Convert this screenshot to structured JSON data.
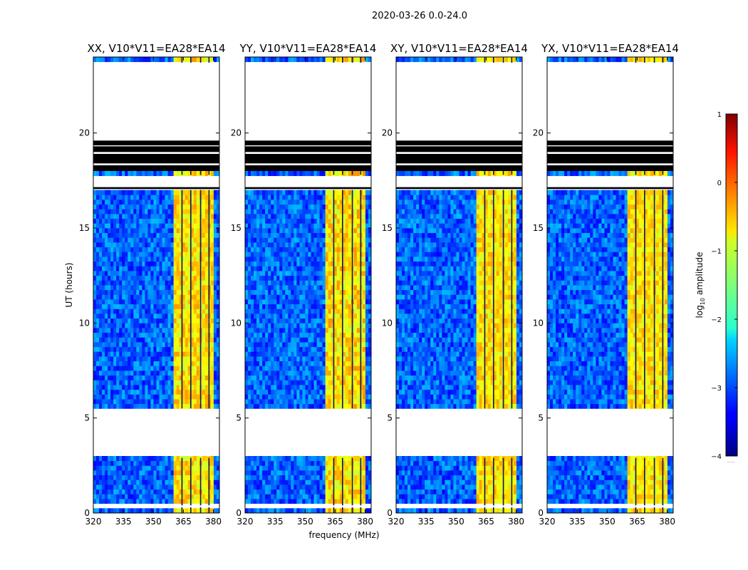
{
  "figure": {
    "suptitle": "2020-03-26 0.0-24.0",
    "ylabel": "UT (hours)",
    "xlabel": "frequency (MHz)",
    "colorbar_label": "log",
    "colorbar_label_sub": "10",
    "colorbar_label_suffix": " amplitude",
    "colorbar_extra": "......"
  },
  "chart_data": {
    "type": "heatmap",
    "panels": [
      {
        "title": "XX, V10*V11=EA28*EA14",
        "pol": "XX",
        "strength": 1.0
      },
      {
        "title": "YY, V10*V11=EA28*EA14",
        "pol": "YY",
        "strength": 1.12
      },
      {
        "title": "XY, V10*V11=EA28*EA14",
        "pol": "XY",
        "strength": 0.92
      },
      {
        "title": "YX, V10*V11=EA28*EA14",
        "pol": "YX",
        "strength": 0.88
      }
    ],
    "xlim": [
      320,
      383
    ],
    "ylim": [
      0,
      24
    ],
    "xticks": [
      320,
      335,
      350,
      365,
      380
    ],
    "xtick_labels": [
      "320",
      "335",
      "350",
      "365",
      "380"
    ],
    "yticks": [
      0,
      5,
      10,
      15,
      20
    ],
    "ytick_labels": [
      "0",
      "5",
      "10",
      "15",
      "20"
    ],
    "colorbar": {
      "vmin": -4,
      "vmax": 1,
      "ticks": [
        -4,
        -3,
        -2,
        -1,
        0,
        1
      ],
      "tick_labels": [
        "−4",
        "−3",
        "−2",
        "−1",
        "0",
        "1"
      ],
      "colormap": "jet"
    },
    "rfi_band_mhz": [
      360,
      380
    ],
    "rfi_level_log10": -0.8,
    "background_level_log10": -2.9,
    "data_intervals_ut": [
      [
        0.0,
        0.3
      ],
      [
        0.4,
        2.9
      ],
      [
        5.5,
        17.0
      ],
      [
        17.8,
        18.0
      ],
      [
        23.7,
        24.0
      ]
    ],
    "flagged_intervals_ut": [
      [
        18.0,
        18.3
      ],
      [
        18.4,
        18.9
      ],
      [
        19.0,
        19.3
      ],
      [
        19.35,
        19.6
      ],
      [
        17.05,
        17.15
      ]
    ],
    "flagged_channels_mhz": [
      [
        364,
        364.6
      ],
      [
        368.4,
        369.0
      ],
      [
        373.3,
        373.9
      ],
      [
        377.5,
        378.1
      ]
    ],
    "blank_gaps_ut": [
      [
        2.9,
        5.5
      ],
      [
        17.15,
        17.8
      ],
      [
        19.6,
        23.7
      ]
    ]
  }
}
